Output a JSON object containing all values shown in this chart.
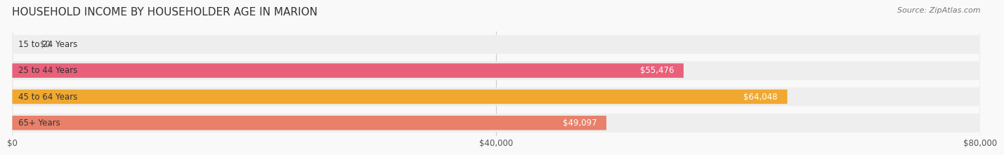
{
  "title": "HOUSEHOLD INCOME BY HOUSEHOLDER AGE IN MARION",
  "source": "Source: ZipAtlas.com",
  "categories": [
    "15 to 24 Years",
    "25 to 44 Years",
    "45 to 64 Years",
    "65+ Years"
  ],
  "values": [
    0,
    55476,
    64048,
    49097
  ],
  "value_labels": [
    "$0",
    "$55,476",
    "$64,048",
    "$49,097"
  ],
  "bar_colors": [
    "#a8acd8",
    "#e8607a",
    "#f0a830",
    "#e8806a"
  ],
  "bg_bar_color": "#eeeeee",
  "xlim": [
    0,
    80000
  ],
  "xticks": [
    0,
    40000,
    80000
  ],
  "xtick_labels": [
    "$0",
    "$40,000",
    "$80,000"
  ],
  "title_fontsize": 11,
  "source_fontsize": 8,
  "label_fontsize": 8.5,
  "value_fontsize": 8.5,
  "bar_height": 0.55,
  "bg_bar_height": 0.72,
  "background_color": "#f9f9f9"
}
